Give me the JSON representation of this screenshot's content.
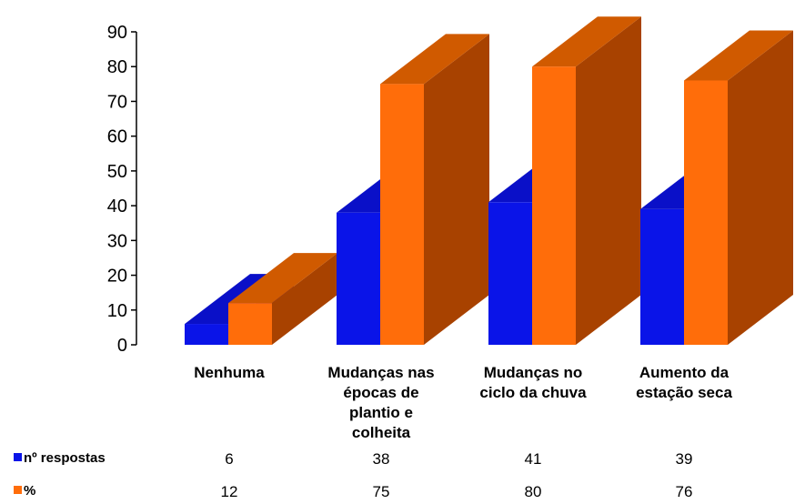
{
  "chart_data": {
    "type": "bar",
    "categories": [
      [
        "Nenhuma"
      ],
      [
        "Mudanças nas",
        "épocas de",
        "plantio e",
        "colheita"
      ],
      [
        "Mudanças no",
        "ciclo da chuva"
      ],
      [
        "Aumento da",
        "estação seca"
      ]
    ],
    "series": [
      {
        "name": "nº respostas",
        "values": [
          6,
          38,
          41,
          39
        ],
        "color": "#0a14e8",
        "side_color": "#0000a0",
        "top_color": "#0a10c8"
      },
      {
        "name": "%",
        "values": [
          12,
          75,
          80,
          76
        ],
        "color": "#ff6d0a",
        "side_color": "#a84200",
        "top_color": "#d05a00"
      }
    ],
    "yticks": [
      0,
      10,
      20,
      30,
      40,
      50,
      60,
      70,
      80,
      90
    ],
    "ylim": [
      0,
      90
    ],
    "grid": false,
    "legend": "data-table-below",
    "title": "",
    "xlabel": "",
    "ylabel": ""
  }
}
